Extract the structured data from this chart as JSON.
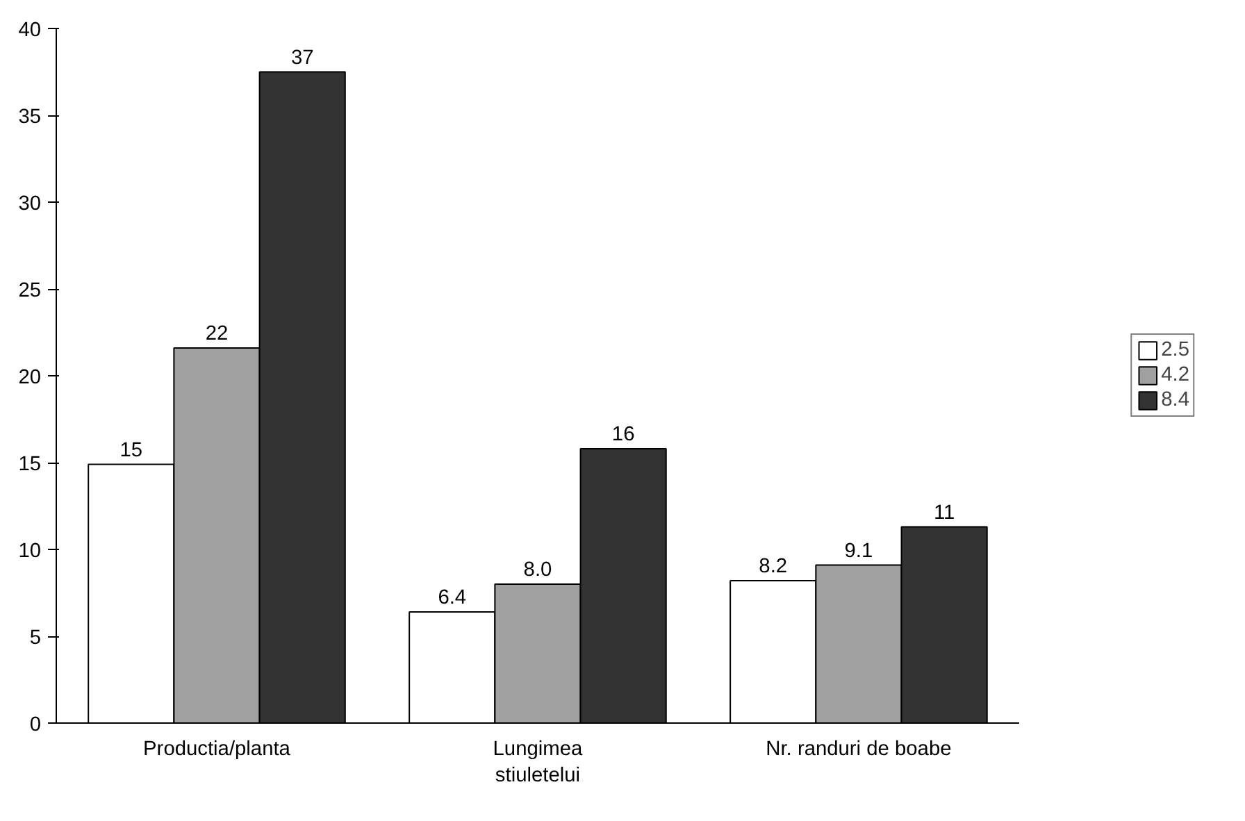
{
  "chart_data": {
    "type": "bar",
    "categories": [
      "Productia/planta",
      "Lungimea\nstiuletelui",
      "Nr. randuri de boabe"
    ],
    "series": [
      {
        "name": "2.5",
        "color": "#ffffff",
        "values": [
          14.9,
          6.4,
          8.2
        ],
        "value_labels": [
          "15",
          "6.4",
          "8.2"
        ]
      },
      {
        "name": "4.2",
        "color": "#a0a0a0",
        "values": [
          21.6,
          8.0,
          9.1
        ],
        "value_labels": [
          "22",
          "8.0",
          "9.1"
        ]
      },
      {
        "name": "8.4",
        "color": "#333333",
        "values": [
          37.5,
          15.8,
          11.3
        ],
        "value_labels": [
          "37",
          "16",
          "11"
        ]
      }
    ],
    "ylim": [
      0,
      40
    ],
    "yticks": [
      0,
      5,
      10,
      15,
      20,
      25,
      30,
      35,
      40
    ],
    "grid": false,
    "legend": "right"
  }
}
